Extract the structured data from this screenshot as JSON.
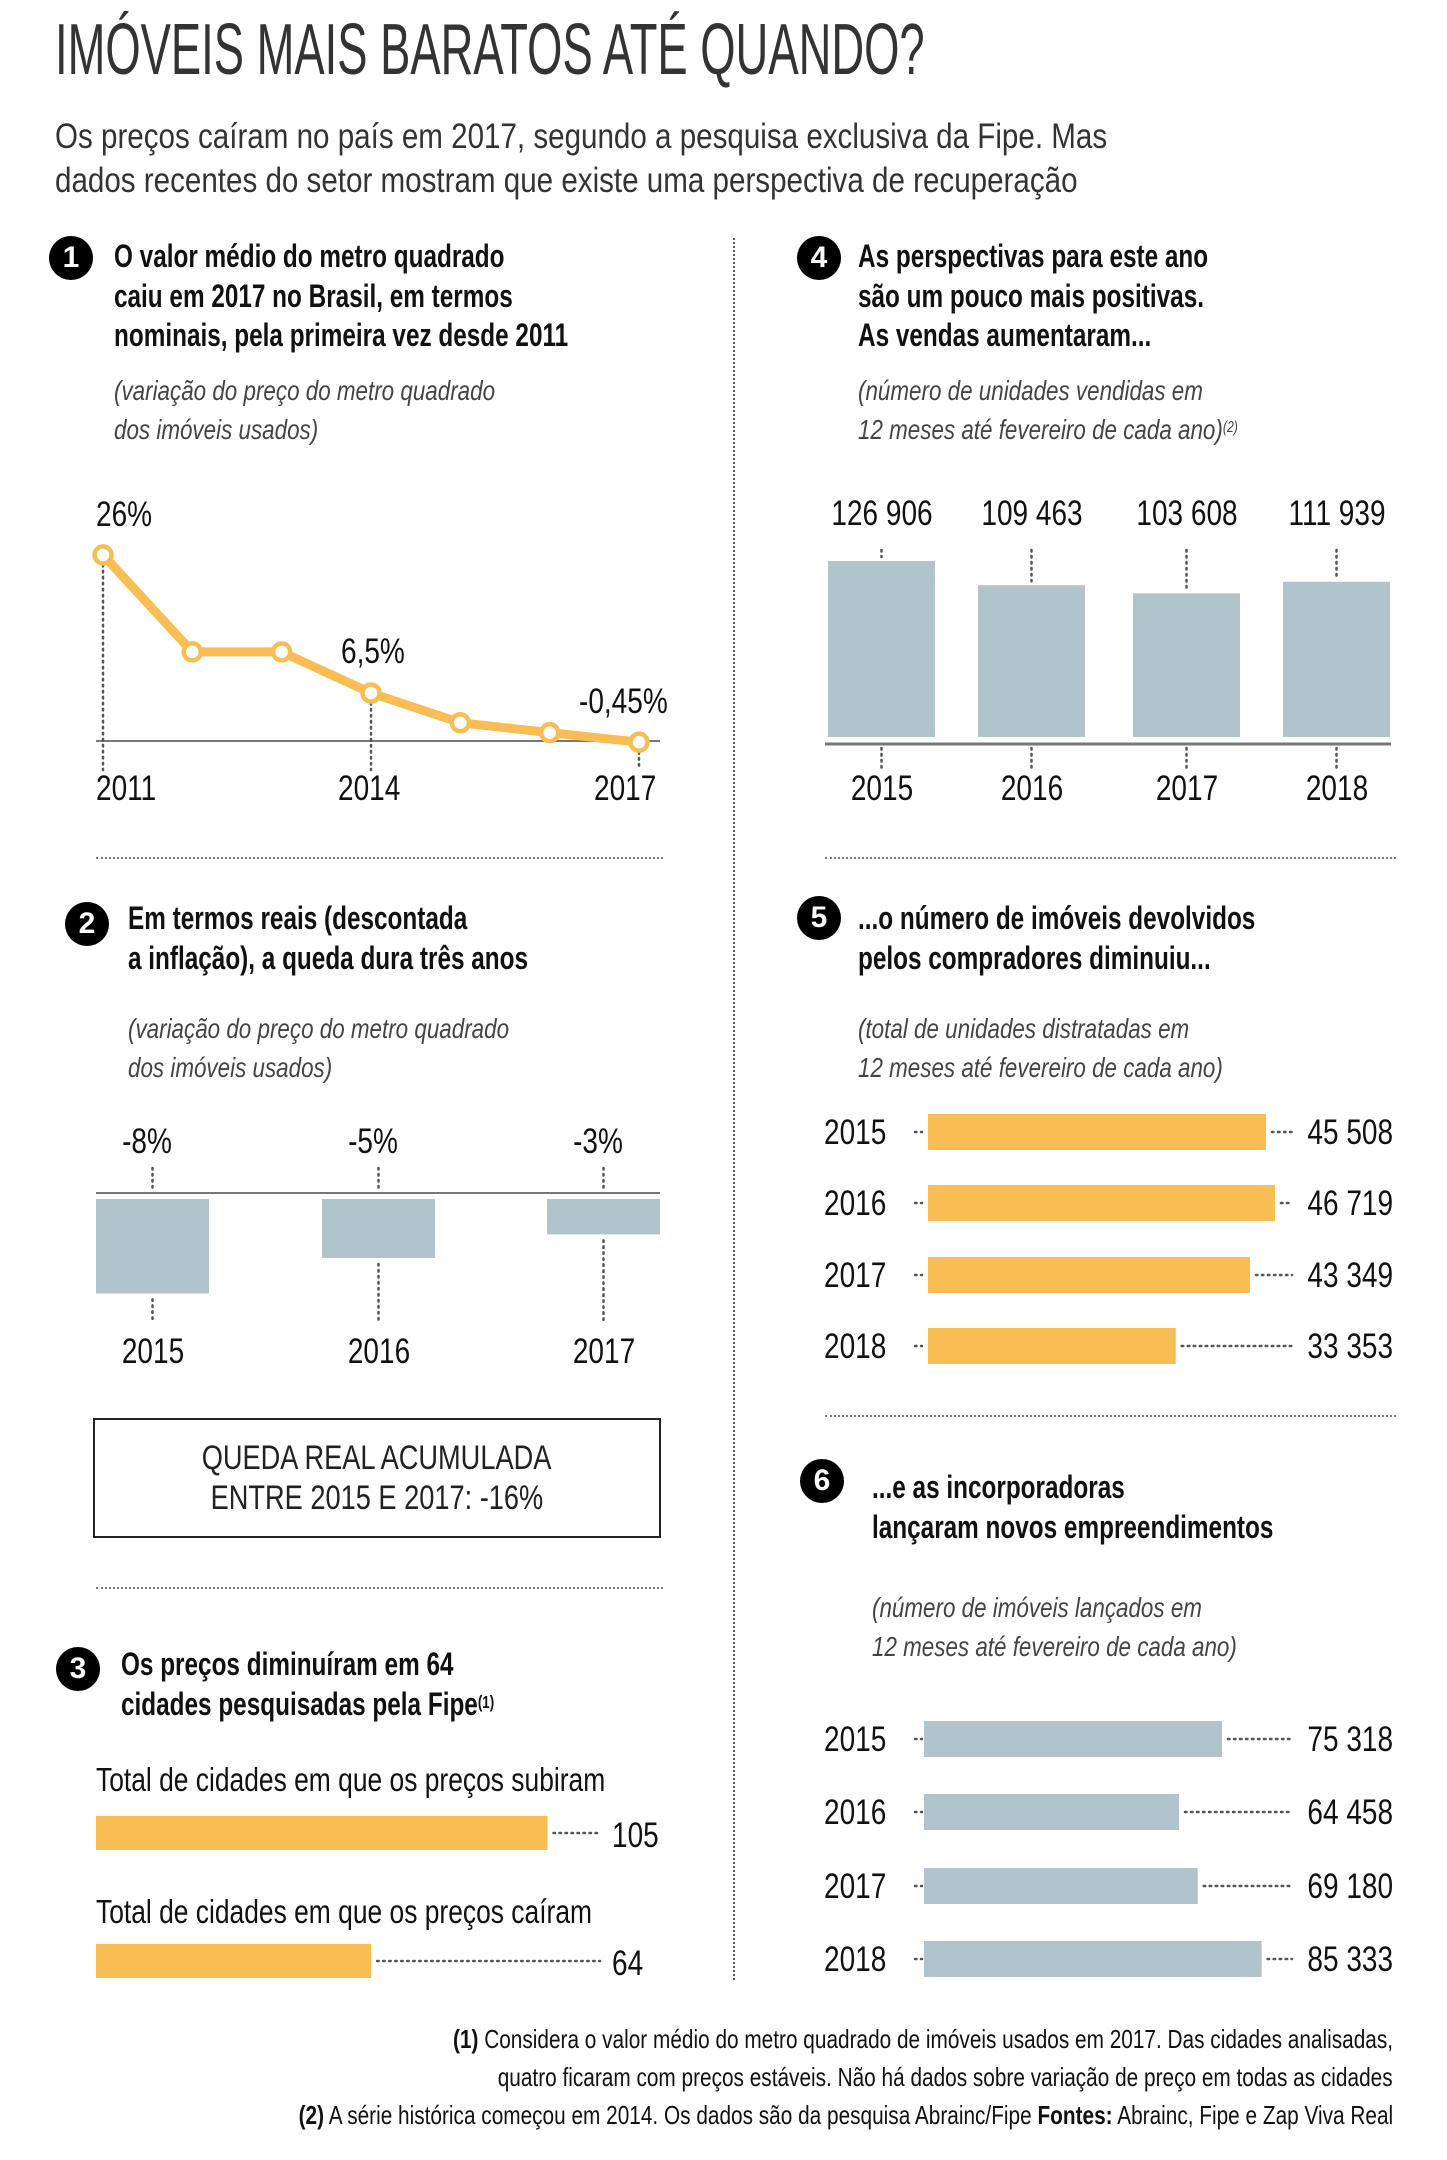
{
  "header": {
    "title": "IMÓVEIS MAIS BARATOS ATÉ QUANDO?",
    "subtitle_lines": [
      "Os preços caíram no país em 2017, segundo a pesquisa exclusiva da Fipe. Mas",
      "dados recentes do setor mostram que existe uma perspectiva de recuperação"
    ]
  },
  "colors": {
    "accent_yellow": "#F9BE53",
    "bar_gray_blue": "#B1C4CC",
    "text": "#111111",
    "badge": "#000000"
  },
  "sections": [
    {
      "number": "1",
      "heading_lines": [
        "O valor médio do metro quadrado",
        "caiu em 2017 no Brasil, em termos",
        "nominais, pela primeira vez desde 2011"
      ],
      "sublabel_lines": [
        "(variação do preço do metro quadrado",
        "dos imóveis usados)"
      ]
    },
    {
      "number": "2",
      "heading_lines": [
        "Em termos reais (descontada",
        "a inflação), a queda dura três anos"
      ],
      "sublabel_lines": [
        "(variação do preço do metro quadrado",
        "dos imóveis usados)"
      ],
      "callout_lines": [
        "QUEDA REAL ACUMULADA",
        "ENTRE 2015 E 2017: -16%"
      ]
    },
    {
      "number": "3",
      "heading_lines": [
        "Os preços diminuíram em 64",
        "cidades pesquisadas pela Fipe"
      ],
      "heading_footnote": "(1)"
    },
    {
      "number": "4",
      "heading_lines": [
        "As perspectivas para este ano",
        "são um pouco mais positivas.",
        "As vendas aumentaram..."
      ],
      "sublabel_lines": [
        "(número de unidades vendidas em",
        "12 meses até fevereiro de cada ano)"
      ],
      "sublabel_footnote": "(2)"
    },
    {
      "number": "5",
      "heading_lines": [
        "...o número de imóveis devolvidos",
        "pelos compradores diminuiu..."
      ],
      "sublabel_lines": [
        "(total de unidades distratadas em",
        "12 meses até fevereiro de cada ano)"
      ]
    },
    {
      "number": "6",
      "heading_lines": [
        "...e as incorporadoras",
        "lançaram novos empreendimentos"
      ],
      "sublabel_lines": [
        "(número de imóveis lançados em",
        "12 meses até fevereiro de cada ano)"
      ]
    }
  ],
  "footnotes": {
    "note1_marker": "(1)",
    "note1_lines": [
      "Considera o valor médio do metro quadrado de imóveis usados em 2017. Das cidades analisadas,",
      "quatro ficaram com preços estáveis. Não há dados sobre variação de preço em todas as cidades"
    ],
    "note2_marker": "(2)",
    "note2_text": "A série histórica começou em 2014. Os dados são da pesquisa Abrainc/Fipe",
    "sources_label": "Fontes:",
    "sources_text": "Abrainc, Fipe e Zap Viva Real"
  },
  "chart_data": [
    {
      "id": "nominal-price-change",
      "type": "line",
      "title": "O valor médio do metro quadrado caiu em 2017 no Brasil, em termos nominais, pela primeira vez desde 2011",
      "ylabel": "variação do preço do metro quadrado dos imóveis usados (%)",
      "x": [
        2011,
        2012,
        2013,
        2014,
        2015,
        2016,
        2017
      ],
      "values": [
        26,
        12.3,
        12.3,
        6.5,
        2.3,
        0.9,
        -0.45
      ],
      "labeled_points": [
        {
          "x": 2011,
          "label": "26%"
        },
        {
          "x": 2014,
          "label": "6,5%"
        },
        {
          "x": 2017,
          "label": "-0,45%"
        }
      ],
      "tick_labels": [
        "2011",
        "2014",
        "2017"
      ],
      "ylim": [
        0,
        26
      ],
      "grid": false,
      "color": "#F9BE53"
    },
    {
      "id": "real-price-change",
      "type": "bar",
      "title": "Em termos reais (descontada a inflação), a queda dura três anos",
      "categories": [
        "2015",
        "2016",
        "2017"
      ],
      "values": [
        -8,
        -5,
        -3
      ],
      "value_labels": [
        "-8%",
        "-5%",
        "-3%"
      ],
      "ylim": [
        -8,
        0
      ],
      "color": "#B1C4CC"
    },
    {
      "id": "cities-price-direction",
      "type": "bar",
      "orientation": "horizontal",
      "title": "Os preços diminuíram em 64 cidades pesquisadas pela Fipe",
      "categories": [
        "Total de cidades em que os preços subiram",
        "Total de cidades em que os preços caíram"
      ],
      "values": [
        105,
        64
      ],
      "value_labels": [
        "105",
        "64"
      ],
      "color": "#F9BE53"
    },
    {
      "id": "units-sold",
      "type": "bar",
      "title": "As vendas aumentaram (número de unidades vendidas em 12 meses até fevereiro de cada ano)",
      "categories": [
        "2015",
        "2016",
        "2017",
        "2018"
      ],
      "values": [
        126906,
        109463,
        103608,
        111939
      ],
      "value_labels": [
        "126 906",
        "109 463",
        "103 608",
        "111 939"
      ],
      "color": "#B1C4CC"
    },
    {
      "id": "units-cancelled",
      "type": "bar",
      "orientation": "horizontal",
      "title": "o número de imóveis devolvidos pelos compradores diminuiu (total de unidades distratadas em 12 meses até fevereiro de cada ano)",
      "categories": [
        "2015",
        "2016",
        "2017",
        "2018"
      ],
      "values": [
        45508,
        46719,
        43349,
        33353
      ],
      "value_labels": [
        "45 508",
        "46 719",
        "43 349",
        "33 353"
      ],
      "color": "#F9BE53"
    },
    {
      "id": "units-launched",
      "type": "bar",
      "orientation": "horizontal",
      "title": "as incorporadoras lançaram novos empreendimentos (número de imóveis lançados em 12 meses até fevereiro de cada ano)",
      "categories": [
        "2015",
        "2016",
        "2017",
        "2018"
      ],
      "values": [
        75318,
        64458,
        69180,
        85333
      ],
      "value_labels": [
        "75 318",
        "64 458",
        "69 180",
        "85 333"
      ],
      "color": "#B1C4CC"
    }
  ]
}
